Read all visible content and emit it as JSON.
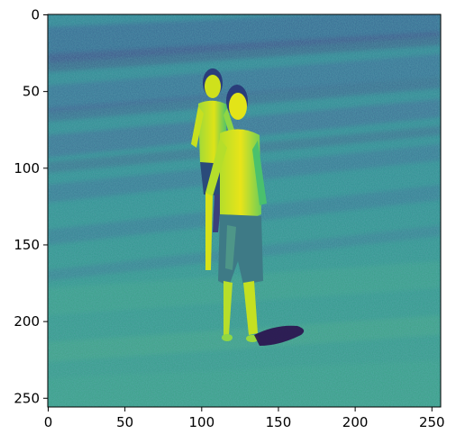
{
  "image": {
    "subject": "two-boys-running-on-grass",
    "colormap": "viridis",
    "x_ticks": [
      "0",
      "50",
      "100",
      "150",
      "200",
      "250"
    ],
    "y_ticks": [
      "0",
      "50",
      "100",
      "150",
      "200",
      "250"
    ],
    "x_range": [
      0,
      256
    ],
    "y_range": [
      256,
      0
    ],
    "colors": {
      "low": "#3b1f6b",
      "mid_dark": "#1f6f87",
      "mid": "#1f9a8a",
      "mid_light": "#35b779",
      "high": "#b5de2b",
      "peak": "#fde725",
      "axis": "#000000"
    }
  }
}
